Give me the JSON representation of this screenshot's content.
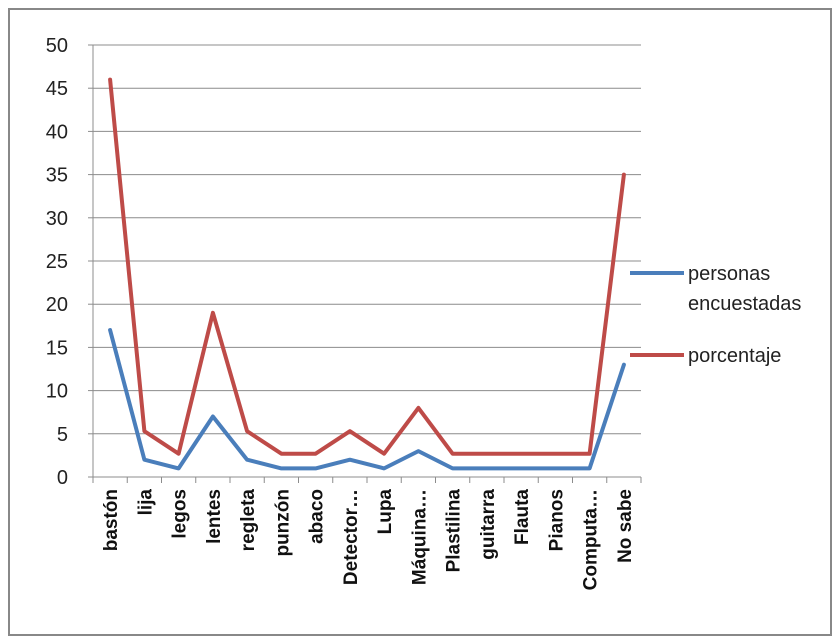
{
  "chart_data": {
    "type": "line",
    "title": "",
    "xlabel": "",
    "ylabel": "",
    "ylim": [
      0,
      50
    ],
    "yticks": [
      0,
      5,
      10,
      15,
      20,
      25,
      30,
      35,
      40,
      45,
      50
    ],
    "grid": "horizontal",
    "legend_position": "right",
    "categories": [
      "bastón",
      "lija",
      "legos",
      "lentes",
      "regleta",
      "punzón",
      "abaco",
      "Detector…",
      "Lupa",
      "Máquina…",
      "Plastilina",
      "guitarra",
      "Flauta",
      "Pianos",
      "Computa…",
      "No sabe"
    ],
    "series": [
      {
        "name": "personas encuestadas",
        "color": "#4a7ebb",
        "values": [
          17,
          2,
          1,
          7,
          2,
          1,
          1,
          2,
          1,
          3,
          1,
          1,
          1,
          1,
          1,
          13
        ]
      },
      {
        "name": "porcentaje",
        "color": "#be4b48",
        "values": [
          46,
          5.3,
          2.7,
          19,
          5.3,
          2.7,
          2.7,
          5.3,
          2.7,
          8,
          2.7,
          2.7,
          2.7,
          2.7,
          2.7,
          35
        ]
      }
    ]
  }
}
